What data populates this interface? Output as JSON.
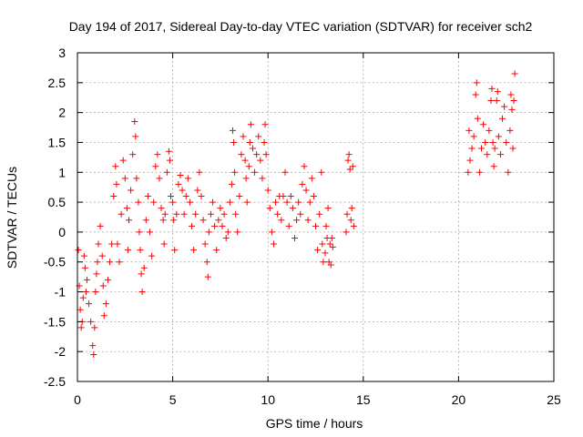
{
  "chart_data": {
    "type": "scatter",
    "title": "Day 194 of 2017, Sidereal Day-to-day VTEC variation (SDTVAR) for receiver sch2",
    "xlabel": "GPS time / hours",
    "ylabel": "SDTVAR / TECUs",
    "xlim": [
      0,
      25
    ],
    "ylim": [
      -2.5,
      3
    ],
    "xticks": [
      "0",
      "5",
      "10",
      "15",
      "20",
      "25"
    ],
    "yticks": [
      "-2.5",
      "-2",
      "-1.5",
      "-1",
      "-0.5",
      "0",
      "0.5",
      "1",
      "1.5",
      "2",
      "2.5",
      "3"
    ],
    "grid": true,
    "marker": "plus",
    "color": "#ff0000",
    "series": [
      {
        "name": "SDTVAR",
        "points": [
          [
            0.05,
            -0.3
          ],
          [
            0.1,
            -0.9
          ],
          [
            0.15,
            -1.3
          ],
          [
            0.2,
            -1.6
          ],
          [
            0.25,
            -1.5
          ],
          [
            0.3,
            -1.1
          ],
          [
            0.35,
            -0.4
          ],
          [
            0.4,
            -0.6
          ],
          [
            0.45,
            -1.0
          ],
          [
            0.5,
            -0.8
          ],
          [
            0.6,
            -1.2
          ],
          [
            0.7,
            -1.5
          ],
          [
            0.8,
            -1.9
          ],
          [
            0.85,
            -2.05
          ],
          [
            0.9,
            -1.6
          ],
          [
            0.95,
            -1.0
          ],
          [
            1.0,
            -0.7
          ],
          [
            1.05,
            -0.5
          ],
          [
            1.1,
            -0.2
          ],
          [
            1.2,
            0.1
          ],
          [
            1.3,
            -0.4
          ],
          [
            1.35,
            -0.9
          ],
          [
            1.4,
            -1.4
          ],
          [
            1.5,
            -1.2
          ],
          [
            1.6,
            -0.8
          ],
          [
            1.7,
            -0.5
          ],
          [
            1.8,
            -0.2
          ],
          [
            1.9,
            0.6
          ],
          [
            2.0,
            1.1
          ],
          [
            2.05,
            0.8
          ],
          [
            2.1,
            -0.2
          ],
          [
            2.2,
            -0.5
          ],
          [
            2.3,
            0.3
          ],
          [
            2.4,
            1.2
          ],
          [
            2.5,
            0.9
          ],
          [
            2.6,
            0.4
          ],
          [
            2.65,
            -0.3
          ],
          [
            2.7,
            0.2
          ],
          [
            2.8,
            0.7
          ],
          [
            2.9,
            1.3
          ],
          [
            3.0,
            1.85
          ],
          [
            3.05,
            1.6
          ],
          [
            3.1,
            0.9
          ],
          [
            3.2,
            0.5
          ],
          [
            3.25,
            0.0
          ],
          [
            3.3,
            -0.3
          ],
          [
            3.35,
            -0.7
          ],
          [
            3.4,
            -1.0
          ],
          [
            3.5,
            -0.6
          ],
          [
            3.6,
            0.2
          ],
          [
            3.7,
            0.6
          ],
          [
            3.8,
            0.0
          ],
          [
            3.9,
            -0.4
          ],
          [
            4.0,
            0.5
          ],
          [
            4.1,
            1.1
          ],
          [
            4.2,
            1.3
          ],
          [
            4.3,
            0.9
          ],
          [
            4.4,
            0.4
          ],
          [
            4.5,
            0.2
          ],
          [
            4.55,
            -0.2
          ],
          [
            4.6,
            0.3
          ],
          [
            4.7,
            1.0
          ],
          [
            4.8,
            1.35
          ],
          [
            4.85,
            1.2
          ],
          [
            4.9,
            0.6
          ],
          [
            5.0,
            0.5
          ],
          [
            5.05,
            0.2
          ],
          [
            5.1,
            -0.3
          ],
          [
            5.2,
            0.3
          ],
          [
            5.3,
            0.8
          ],
          [
            5.4,
            0.95
          ],
          [
            5.5,
            0.7
          ],
          [
            5.6,
            0.3
          ],
          [
            5.7,
            0.6
          ],
          [
            5.8,
            0.9
          ],
          [
            5.9,
            0.5
          ],
          [
            6.0,
            0.1
          ],
          [
            6.1,
            -0.3
          ],
          [
            6.2,
            0.3
          ],
          [
            6.3,
            0.7
          ],
          [
            6.4,
            1.0
          ],
          [
            6.5,
            0.6
          ],
          [
            6.6,
            0.2
          ],
          [
            6.7,
            -0.2
          ],
          [
            6.8,
            -0.5
          ],
          [
            6.85,
            -0.75
          ],
          [
            6.9,
            0.0
          ],
          [
            7.0,
            0.3
          ],
          [
            7.1,
            0.5
          ],
          [
            7.2,
            0.1
          ],
          [
            7.3,
            -0.3
          ],
          [
            7.4,
            0.2
          ],
          [
            7.5,
            0.4
          ],
          [
            7.6,
            0.1
          ],
          [
            7.7,
            0.3
          ],
          [
            7.8,
            -0.1
          ],
          [
            7.9,
            0.0
          ],
          [
            8.0,
            0.5
          ],
          [
            8.1,
            0.8
          ],
          [
            8.15,
            1.7
          ],
          [
            8.2,
            1.5
          ],
          [
            8.25,
            1.0
          ],
          [
            8.3,
            0.3
          ],
          [
            8.4,
            0.0
          ],
          [
            8.5,
            0.6
          ],
          [
            8.6,
            1.3
          ],
          [
            8.7,
            1.6
          ],
          [
            8.8,
            1.2
          ],
          [
            8.85,
            0.9
          ],
          [
            8.9,
            0.5
          ],
          [
            9.0,
            1.1
          ],
          [
            9.05,
            1.5
          ],
          [
            9.1,
            1.8
          ],
          [
            9.2,
            1.4
          ],
          [
            9.3,
            1.0
          ],
          [
            9.4,
            1.3
          ],
          [
            9.5,
            1.6
          ],
          [
            9.6,
            1.2
          ],
          [
            9.7,
            0.9
          ],
          [
            9.8,
            1.5
          ],
          [
            9.85,
            1.8
          ],
          [
            9.9,
            1.3
          ],
          [
            10.0,
            0.7
          ],
          [
            10.1,
            0.4
          ],
          [
            10.2,
            0.0
          ],
          [
            10.3,
            -0.2
          ],
          [
            10.4,
            0.5
          ],
          [
            10.5,
            0.3
          ],
          [
            10.6,
            0.6
          ],
          [
            10.7,
            0.2
          ],
          [
            10.8,
            0.6
          ],
          [
            10.9,
            1.0
          ],
          [
            11.0,
            0.5
          ],
          [
            11.1,
            0.1
          ],
          [
            11.2,
            0.6
          ],
          [
            11.3,
            0.4
          ],
          [
            11.4,
            -0.1
          ],
          [
            11.5,
            0.2
          ],
          [
            11.6,
            0.5
          ],
          [
            11.7,
            0.3
          ],
          [
            11.8,
            0.8
          ],
          [
            11.9,
            1.1
          ],
          [
            12.0,
            0.7
          ],
          [
            12.1,
            0.2
          ],
          [
            12.2,
            0.5
          ],
          [
            12.3,
            0.9
          ],
          [
            12.4,
            0.6
          ],
          [
            12.5,
            0.1
          ],
          [
            12.6,
            -0.3
          ],
          [
            12.7,
            0.3
          ],
          [
            12.8,
            1.0
          ],
          [
            12.85,
            -0.2
          ],
          [
            12.9,
            -0.5
          ],
          [
            13.0,
            -0.35
          ],
          [
            13.05,
            0.1
          ],
          [
            13.1,
            -0.1
          ],
          [
            13.15,
            0.4
          ],
          [
            13.2,
            -0.5
          ],
          [
            13.25,
            -0.2
          ],
          [
            13.3,
            -0.55
          ],
          [
            13.35,
            -0.1
          ],
          [
            13.4,
            -0.25
          ],
          [
            14.1,
            0.0
          ],
          [
            14.15,
            0.3
          ],
          [
            14.2,
            1.2
          ],
          [
            14.25,
            1.3
          ],
          [
            14.3,
            1.05
          ],
          [
            14.35,
            0.2
          ],
          [
            14.4,
            0.4
          ],
          [
            14.45,
            1.1
          ],
          [
            14.5,
            0.1
          ],
          [
            20.5,
            1.0
          ],
          [
            20.55,
            1.7
          ],
          [
            20.6,
            1.2
          ],
          [
            20.7,
            1.4
          ],
          [
            20.8,
            1.6
          ],
          [
            20.9,
            2.3
          ],
          [
            20.95,
            2.5
          ],
          [
            21.0,
            1.9
          ],
          [
            21.1,
            1.0
          ],
          [
            21.2,
            1.4
          ],
          [
            21.3,
            1.8
          ],
          [
            21.4,
            1.5
          ],
          [
            21.5,
            1.3
          ],
          [
            21.6,
            1.7
          ],
          [
            21.7,
            2.2
          ],
          [
            21.75,
            2.4
          ],
          [
            21.8,
            1.5
          ],
          [
            21.85,
            1.1
          ],
          [
            21.9,
            1.4
          ],
          [
            22.0,
            2.2
          ],
          [
            22.05,
            2.35
          ],
          [
            22.1,
            1.6
          ],
          [
            22.2,
            1.3
          ],
          [
            22.3,
            1.9
          ],
          [
            22.4,
            2.1
          ],
          [
            22.5,
            1.5
          ],
          [
            22.6,
            1.0
          ],
          [
            22.7,
            1.7
          ],
          [
            22.75,
            2.3
          ],
          [
            22.8,
            2.05
          ],
          [
            22.85,
            1.4
          ],
          [
            22.9,
            2.2
          ],
          [
            22.95,
            2.65
          ]
        ]
      }
    ]
  }
}
